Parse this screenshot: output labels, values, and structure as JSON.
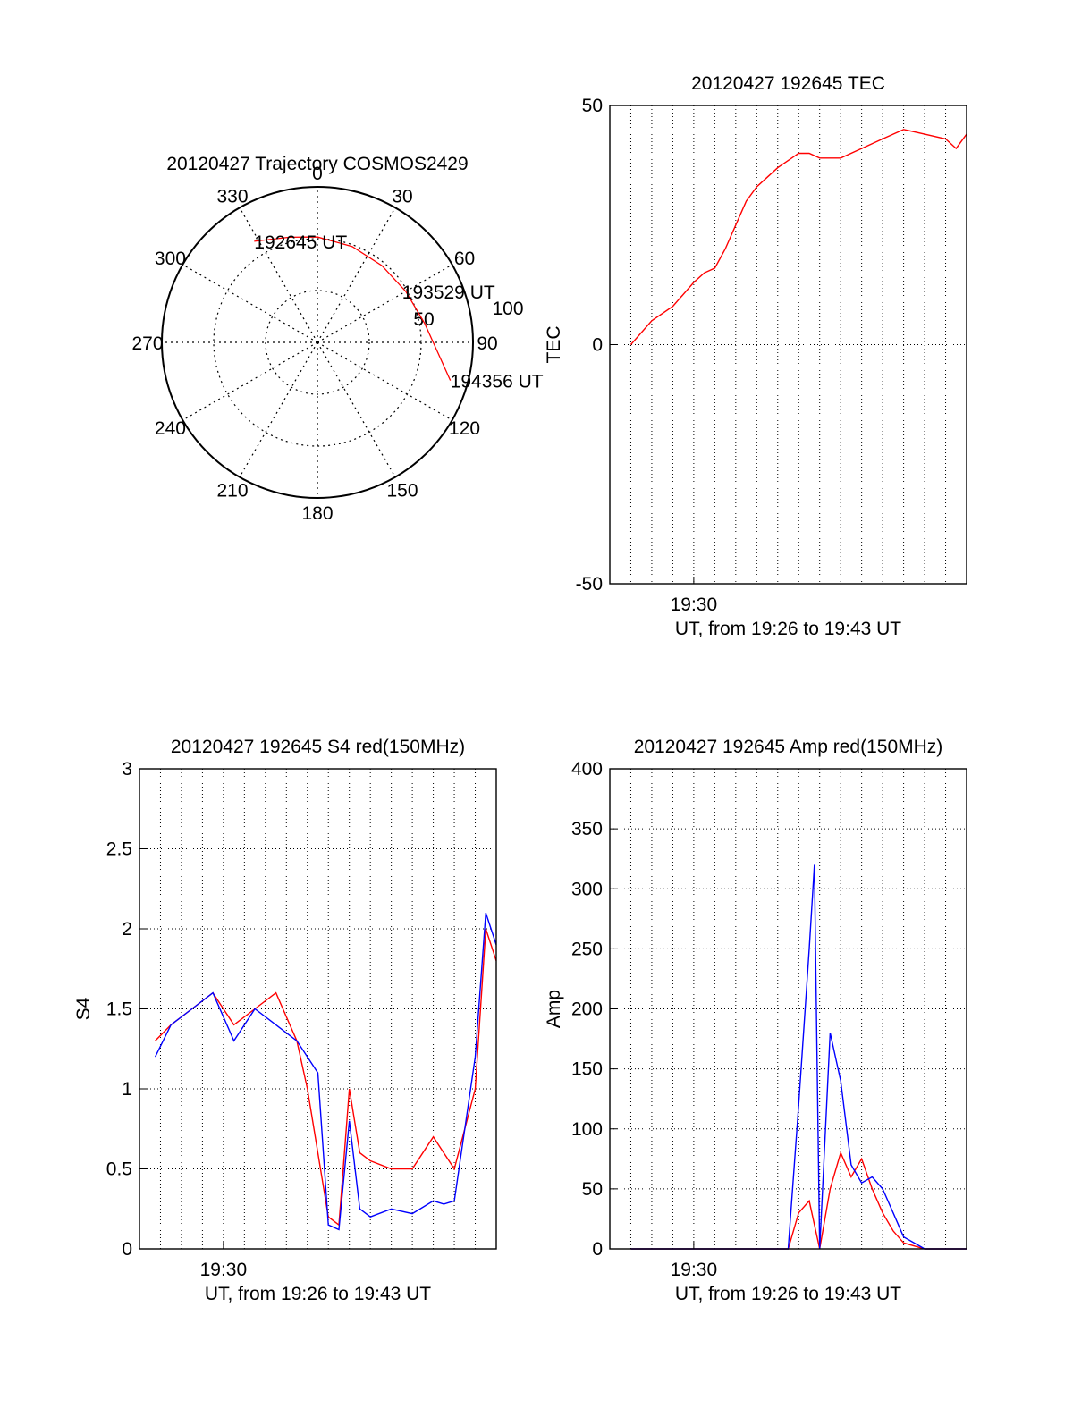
{
  "chart_data": [
    {
      "type": "polar",
      "title": "20120427 Trajectory COSMOS2429",
      "angle_labels": [
        "0",
        "30",
        "60",
        "90",
        "120",
        "150",
        "180",
        "210",
        "240",
        "270",
        "300",
        "330"
      ],
      "radius_labels": [
        "50",
        "100"
      ],
      "series": [
        {
          "color": "#ff0000",
          "points": [
            {
              "azimuth": 328,
              "elevation": 21
            },
            {
              "azimuth": 345,
              "elevation": 27
            },
            {
              "azimuth": 0,
              "elevation": 29
            },
            {
              "azimuth": 20,
              "elevation": 31
            },
            {
              "azimuth": 40,
              "elevation": 32
            },
            {
              "azimuth": 60,
              "elevation": 31
            },
            {
              "azimuth": 80,
              "elevation": 27
            },
            {
              "azimuth": 95,
              "elevation": 20
            },
            {
              "azimuth": 106,
              "elevation": 10
            }
          ]
        }
      ],
      "annotations": [
        {
          "text": "192645 UT",
          "azimuth": 328,
          "elevation": 21
        },
        {
          "text": "193529 UT",
          "azimuth": 60,
          "elevation": 31
        },
        {
          "text": "194356 UT",
          "azimuth": 106,
          "elevation": 10
        }
      ]
    },
    {
      "type": "line",
      "title": "20120427 192645 TEC",
      "xlabel": "UT, from 19:26 to 19:43 UT",
      "ylabel": "TEC",
      "xlim": [
        "19:26",
        "19:43"
      ],
      "xticks": [
        "19:30"
      ],
      "ylim": [
        -50,
        50
      ],
      "yticks": [
        "-50",
        "0",
        "50"
      ],
      "grid": true,
      "series": [
        {
          "color": "#ff0000",
          "x": [
            "19:27:00",
            "19:28:00",
            "19:29:00",
            "19:30:00",
            "19:30:30",
            "19:31:00",
            "19:31:30",
            "19:32:00",
            "19:32:30",
            "19:33:00",
            "19:33:30",
            "19:34:00",
            "19:35:00",
            "19:35:30",
            "19:36:00",
            "19:37:00",
            "19:38:00",
            "19:39:00",
            "19:40:00",
            "19:41:00",
            "19:42:00",
            "19:42:30",
            "19:43:00"
          ],
          "values": [
            0,
            5,
            8,
            13,
            15,
            16,
            20,
            25,
            30,
            33,
            35,
            37,
            40,
            40,
            39,
            39,
            41,
            43,
            45,
            44,
            43,
            41,
            44
          ]
        }
      ]
    },
    {
      "type": "line",
      "title": "20120427 192645 S4 red(150MHz)",
      "xlabel": "UT, from 19:26 to 19:43 UT",
      "ylabel": "S4",
      "xlim": [
        "19:26",
        "19:43"
      ],
      "xticks": [
        "19:30"
      ],
      "ylim": [
        0,
        3
      ],
      "yticks": [
        "0",
        "0.5",
        "1",
        "1.5",
        "2",
        "2.5",
        "3"
      ],
      "grid": true,
      "series": [
        {
          "color": "#ff0000",
          "x": [
            "19:26:45",
            "19:27:30",
            "19:28:30",
            "19:29:30",
            "19:30:30",
            "19:31:30",
            "19:32:30",
            "19:33:30",
            "19:34:00",
            "19:34:30",
            "19:35:00",
            "19:35:30",
            "19:36:00",
            "19:36:30",
            "19:37:00",
            "19:38:00",
            "19:39:00",
            "19:40:00",
            "19:40:30",
            "19:41:00",
            "19:42:00",
            "19:42:30",
            "19:43:00"
          ],
          "values": [
            1.3,
            1.4,
            1.5,
            1.6,
            1.4,
            1.5,
            1.6,
            1.3,
            1.0,
            0.6,
            0.2,
            0.15,
            1.0,
            0.6,
            0.55,
            0.5,
            0.5,
            0.7,
            0.6,
            0.5,
            1.0,
            2.0,
            1.8
          ]
        },
        {
          "color": "#0000ff",
          "x": [
            "19:26:45",
            "19:27:30",
            "19:28:30",
            "19:29:30",
            "19:30:30",
            "19:31:30",
            "19:32:30",
            "19:33:30",
            "19:34:00",
            "19:34:30",
            "19:35:00",
            "19:35:30",
            "19:36:00",
            "19:36:30",
            "19:37:00",
            "19:38:00",
            "19:39:00",
            "19:40:00",
            "19:40:30",
            "19:41:00",
            "19:42:00",
            "19:42:30",
            "19:43:00"
          ],
          "values": [
            1.2,
            1.4,
            1.5,
            1.6,
            1.3,
            1.5,
            1.4,
            1.3,
            1.2,
            1.1,
            0.15,
            0.12,
            0.8,
            0.25,
            0.2,
            0.25,
            0.22,
            0.3,
            0.28,
            0.3,
            1.2,
            2.1,
            1.9
          ]
        }
      ]
    },
    {
      "type": "line",
      "title": "20120427 192645 Amp red(150MHz)",
      "xlabel": "UT, from 19:26 to 19:43 UT",
      "ylabel": "Amp",
      "xlim": [
        "19:26",
        "19:43"
      ],
      "xticks": [
        "19:30"
      ],
      "ylim": [
        0,
        400
      ],
      "yticks": [
        "0",
        "50",
        "100",
        "150",
        "200",
        "250",
        "300",
        "350",
        "400"
      ],
      "grid": true,
      "series": [
        {
          "color": "#ff0000",
          "x": [
            "19:27:00",
            "19:33:00",
            "19:34:30",
            "19:35:00",
            "19:35:30",
            "19:36:00",
            "19:36:30",
            "19:37:00",
            "19:37:30",
            "19:38:00",
            "19:38:30",
            "19:39:00",
            "19:39:30",
            "19:40:00",
            "19:41:00",
            "19:43:00"
          ],
          "values": [
            0,
            0,
            0,
            30,
            40,
            0,
            50,
            80,
            60,
            75,
            50,
            30,
            15,
            5,
            0,
            0
          ]
        },
        {
          "color": "#0000ff",
          "x": [
            "19:27:00",
            "19:33:00",
            "19:34:30",
            "19:35:00",
            "19:35:30",
            "19:35:45",
            "19:36:00",
            "19:36:30",
            "19:37:00",
            "19:37:30",
            "19:38:00",
            "19:38:30",
            "19:39:00",
            "19:39:30",
            "19:40:00",
            "19:41:00",
            "19:43:00"
          ],
          "values": [
            0,
            0,
            0,
            120,
            250,
            320,
            0,
            180,
            140,
            70,
            55,
            60,
            50,
            30,
            10,
            0,
            0
          ]
        }
      ]
    }
  ]
}
